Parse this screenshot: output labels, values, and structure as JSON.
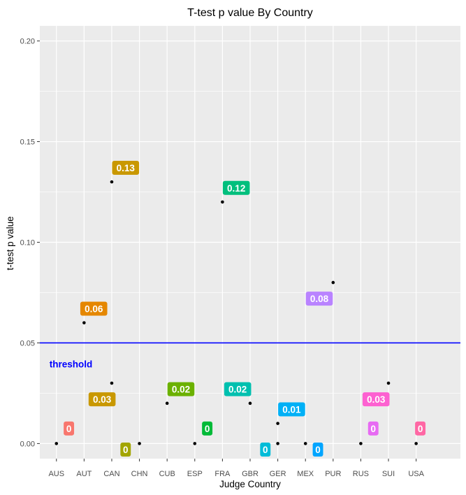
{
  "chart_data": {
    "type": "scatter",
    "title": "T-test p value By Country",
    "xlabel": "Judge Country",
    "ylabel": "t-test p value",
    "categories": [
      "AUS",
      "AUT",
      "CAN",
      "CHN",
      "CUB",
      "ESP",
      "FRA",
      "GBR",
      "GER",
      "MEX",
      "PUR",
      "RUS",
      "SUI",
      "USA"
    ],
    "values": [
      0,
      0.06,
      0.13,
      0,
      0.02,
      0,
      0.12,
      0.02,
      0.01,
      0,
      0.08,
      0,
      0.03,
      0
    ],
    "labels": [
      {
        "category": "AUS",
        "text": "0",
        "color": "#F8766D"
      },
      {
        "category": "AUT",
        "text": "0.06",
        "color": "#E58700"
      },
      {
        "category": "CAN",
        "text": "0.13",
        "color": "#C99800"
      },
      {
        "category": "CAN",
        "text": "0.03",
        "color": "#C99800"
      },
      {
        "category": "CHN",
        "text": "0",
        "color": "#A3A500"
      },
      {
        "category": "CUB",
        "text": "0.02",
        "color": "#6BB100"
      },
      {
        "category": "ESP",
        "text": "0",
        "color": "#00BA38"
      },
      {
        "category": "FRA",
        "text": "0.12",
        "color": "#00BF7D"
      },
      {
        "category": "GBR",
        "text": "0.02",
        "color": "#00C0AF"
      },
      {
        "category": "GER",
        "text": "0",
        "color": "#00BCD8"
      },
      {
        "category": "GER",
        "text": "0.01",
        "color": "#00B0F6"
      },
      {
        "category": "MEX",
        "text": "0",
        "color": "#00A5FF"
      },
      {
        "category": "PUR",
        "text": "0.08",
        "color": "#B983FF"
      },
      {
        "category": "RUS",
        "text": "0",
        "color": "#E76BF3"
      },
      {
        "category": "SUI",
        "text": "0.03",
        "color": "#FD61D1"
      },
      {
        "category": "USA",
        "text": "0",
        "color": "#FF67A4"
      }
    ],
    "extra_points": [
      {
        "category": "CAN",
        "value": 0.03
      },
      {
        "category": "GER",
        "value": 0.0
      }
    ],
    "hline": {
      "value": 0.05,
      "label": "threshold",
      "color": "#0000FF"
    },
    "ylim": [
      -0.0075,
      0.2075
    ],
    "yticks": [
      0.0,
      0.05,
      0.1,
      0.15,
      0.2
    ],
    "ytick_labels": [
      "0.00",
      "0.05",
      "0.10",
      "0.15",
      "0.20"
    ],
    "grid": true,
    "legend": "none",
    "colors": {
      "panel": "#EBEBEB",
      "grid_major": "#FFFFFF",
      "point": "#000000"
    }
  }
}
